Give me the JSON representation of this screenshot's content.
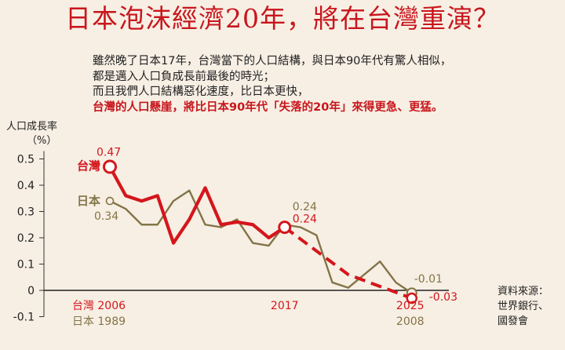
{
  "title": "日本泡沫經濟20年，將在台灣重演？",
  "description": [
    "雖然晚了日本17年，台灣當下的人口結構，與日本90年代有驚人相似，",
    "都是邁入人口負成長前最後的時光；",
    "而且我們人口結構惡化速度，比日本更快，",
    "台灣的人口懸崖，將比日本90年代「失落的20年」來得更急、更猛。"
  ],
  "source_label": "資料來源：",
  "source_lines": [
    "世界銀行、",
    "國發會"
  ],
  "colors": {
    "taiwan": "#d4161c",
    "japan": "#837447",
    "title": "#c8161d"
  },
  "chart_data": {
    "type": "line",
    "ylabel": "人口成長率",
    "yunit": "（%）",
    "ylim": [
      -0.1,
      0.5
    ],
    "yticks": [
      "0.5",
      "0.4",
      "0.3",
      "0.2",
      "0.1",
      "0",
      "-0.1"
    ],
    "series": [
      {
        "name": "台灣",
        "x": [
          2006,
          2007,
          2008,
          2009,
          2010,
          2011,
          2012,
          2013,
          2014,
          2015,
          2016,
          2017
        ],
        "values": [
          0.47,
          0.36,
          0.34,
          0.36,
          0.18,
          0.27,
          0.39,
          0.25,
          0.26,
          0.25,
          0.2,
          0.24
        ],
        "projection": {
          "x": [
            2017,
            2021,
            2025
          ],
          "values": [
            0.24,
            0.06,
            -0.03
          ]
        }
      },
      {
        "name": "日本",
        "x": [
          1989,
          1990,
          1991,
          1992,
          1993,
          1994,
          1995,
          1996,
          1997,
          1998,
          1999,
          2000,
          2001,
          2002,
          2003,
          2004,
          2005,
          2006,
          2007,
          2008
        ],
        "values": [
          0.34,
          0.31,
          0.25,
          0.25,
          0.34,
          0.38,
          0.25,
          0.24,
          0.27,
          0.18,
          0.17,
          0.25,
          0.24,
          0.21,
          0.03,
          0.01,
          0.06,
          0.11,
          0.03,
          -0.01
        ]
      }
    ],
    "annotations": [
      "0.47",
      "0.34",
      "0.24",
      "0.24",
      "-0.01",
      "-0.03"
    ],
    "x_axis_labels": {
      "taiwan": [
        "台灣 2006",
        "2017",
        "2025"
      ],
      "japan": [
        "日本 1989",
        "2008"
      ]
    }
  }
}
